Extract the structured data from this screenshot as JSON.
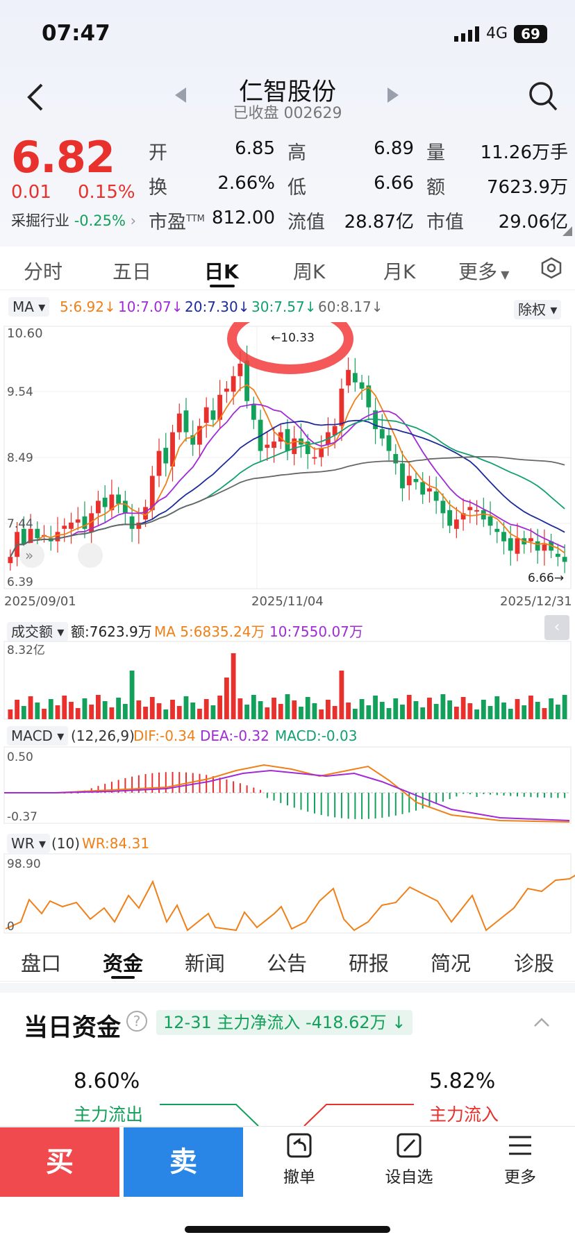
{
  "status": {
    "time": "07:47",
    "network": "4G",
    "battery": "69"
  },
  "header": {
    "title": "仁智股份",
    "subtitle": "已收盘 002629"
  },
  "quote": {
    "price": "6.82",
    "change": "0.01",
    "change_pct": "0.15%",
    "industry_label": "采掘行业",
    "industry_pct": "-0.25%",
    "open_label": "开",
    "open": "6.85",
    "high_label": "高",
    "high": "6.89",
    "volume_label": "量",
    "volume": "11.26万手",
    "turnover_label": "换",
    "turnover": "2.66%",
    "low_label": "低",
    "low": "6.66",
    "amount_label": "额",
    "amount": "7623.9万",
    "pe_label": "市盈",
    "pe_sup": "TTM",
    "pe": "812.00",
    "float_label": "流值",
    "float_cap": "28.87亿",
    "mcap_label": "市值",
    "mcap": "29.06亿"
  },
  "tabs": [
    "分时",
    "五日",
    "日K",
    "周K",
    "月K",
    "更多"
  ],
  "ma_bar": {
    "label": "MA",
    "ma5": "5:6.92",
    "ma10": "10:7.07",
    "ma20": "20:7.30",
    "ma30": "30:7.57",
    "ma60": "60:8.17",
    "rights": "除权"
  },
  "kline": {
    "y_top": "10.60",
    "y_2": "9.54",
    "y_3": "8.49",
    "y_4": "7.44",
    "y_bottom": "6.39",
    "max_label": "10.33",
    "min_label": "6.66",
    "date_start": "2025/09/01",
    "date_mid": "2025/11/04",
    "date_end": "2025/12/31"
  },
  "volume_panel": {
    "label": "成交额",
    "amount": "额:7623.9万",
    "ma5": "MA 5:6835.24万",
    "ma10": "10:7550.07万",
    "max": "8.32亿"
  },
  "macd_panel": {
    "label": "MACD",
    "params": "(12,26,9)",
    "dif": "DIF:-0.34",
    "dea": "DEA:-0.32",
    "macd": "MACD:-0.03",
    "top": "0.50",
    "bottom": "-0.37"
  },
  "wr_panel": {
    "label": "WR",
    "params": "(10)",
    "wr": "WR:84.31",
    "top": "98.90",
    "bottom": "0"
  },
  "bottom_tabs": [
    "盘口",
    "资金",
    "新闻",
    "公告",
    "研报",
    "简况",
    "诊股"
  ],
  "fund": {
    "title": "当日资金",
    "pill": "12-31 主力净流入 -418.62万",
    "out_pct": "8.60%",
    "out_label": "主力流出",
    "in_pct": "5.82%",
    "in_label": "主力流入"
  },
  "actions": {
    "buy": "买",
    "sell": "卖",
    "cancel": "撤单",
    "watch": "设自选",
    "more": "更多"
  },
  "chart_data": {
    "type": "candlestick",
    "ylim": [
      6.39,
      10.6
    ],
    "x_start": "2025/09/01",
    "x_end": "2025/12/31",
    "close": [
      6.9,
      7.3,
      7.1,
      7.35,
      7.2,
      7.25,
      7.15,
      7.3,
      7.4,
      7.45,
      7.5,
      7.35,
      7.6,
      7.8,
      7.7,
      7.9,
      7.75,
      7.6,
      7.35,
      7.45,
      7.7,
      8.2,
      8.6,
      8.4,
      8.9,
      9.2,
      8.9,
      8.7,
      9.0,
      9.3,
      9.1,
      9.5,
      9.6,
      9.8,
      10.0,
      9.4,
      9.1,
      8.6,
      8.7,
      8.75,
      8.9,
      8.6,
      8.8,
      8.7,
      8.55,
      8.5,
      8.65,
      8.9,
      9.0,
      9.6,
      9.9,
      9.7,
      9.6,
      9.3,
      8.95,
      8.8,
      8.6,
      8.4,
      8.0,
      8.2,
      8.1,
      7.9,
      8.0,
      7.8,
      7.6,
      7.4,
      7.5,
      7.6,
      7.7,
      7.65,
      7.5,
      7.4,
      7.3,
      7.15,
      7.0,
      7.2,
      7.1,
      7.2,
      7.0,
      7.1,
      7.0,
      6.9,
      6.82
    ],
    "ma_lines": [
      {
        "name": "MA5",
        "color": "#f07f17"
      },
      {
        "name": "MA10",
        "color": "#a02ad6"
      },
      {
        "name": "MA20",
        "color": "#1a2a9a"
      },
      {
        "name": "MA30",
        "color": "#12a06e"
      },
      {
        "name": "MA60",
        "color": "#666666"
      }
    ]
  }
}
